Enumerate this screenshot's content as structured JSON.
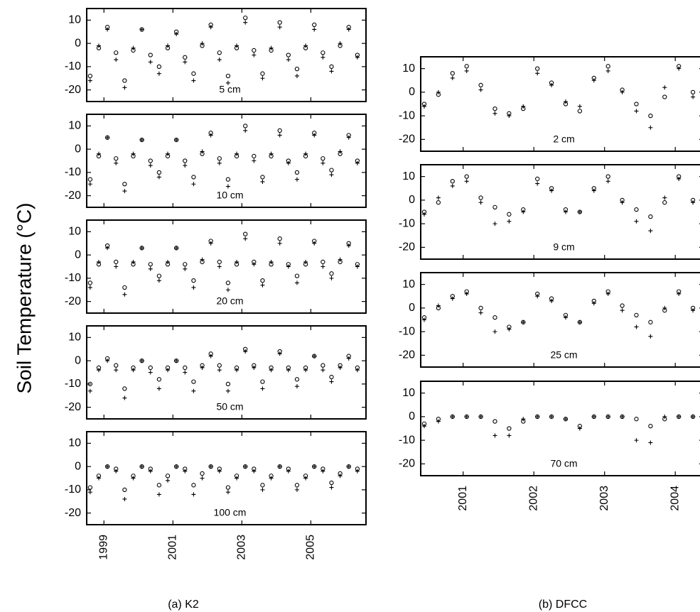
{
  "figure": {
    "ylabel": "Soil Temperature (°C)",
    "captions": [
      "(a) K2",
      "(b) DFCC"
    ]
  },
  "chart_data": [
    {
      "type": "scatter",
      "annotation": "5 cm",
      "xlim": [
        1998.5,
        2006.6
      ],
      "xticks": [
        1999,
        2001,
        2003,
        2005
      ],
      "ylim": [
        -25,
        15
      ],
      "yticks": [
        10,
        0,
        -10,
        -20
      ],
      "x": [
        1998.6,
        1998.85,
        1999.1,
        1999.35,
        1999.6,
        1999.85,
        2000.1,
        2000.35,
        2000.6,
        2000.85,
        2001.1,
        2001.35,
        2001.6,
        2001.85,
        2002.1,
        2002.35,
        2002.6,
        2002.85,
        2003.1,
        2003.35,
        2003.6,
        2003.85,
        2004.1,
        2004.35,
        2004.6,
        2004.85,
        2005.1,
        2005.35,
        2005.6,
        2005.85,
        2006.1,
        2006.35
      ],
      "series": [
        {
          "marker": "o",
          "color": "#000000",
          "values": [
            -14,
            -2,
            7,
            -4,
            -16,
            -3,
            6,
            -5,
            -10,
            -2,
            5,
            -6,
            -13,
            -1,
            8,
            -4,
            -14,
            -2,
            11,
            -3,
            -13,
            -3,
            9,
            -5,
            -11,
            -2,
            8,
            -4,
            -10,
            -1,
            7,
            -5
          ]
        },
        {
          "marker": "+",
          "color": "#000000",
          "values": [
            -16,
            -1,
            6,
            -7,
            -19,
            -2,
            6,
            -8,
            -13,
            -1,
            4,
            -8,
            -16,
            0,
            7,
            -7,
            -17,
            -1,
            9,
            -5,
            -15,
            -2,
            7,
            -7,
            -14,
            -1,
            6,
            -6,
            -12,
            0,
            6,
            -6
          ]
        }
      ]
    },
    {
      "type": "scatter",
      "annotation": "10 cm",
      "xlim": [
        1998.5,
        2006.6
      ],
      "xticks": [
        1999,
        2001,
        2003,
        2005
      ],
      "ylim": [
        -25,
        15
      ],
      "yticks": [
        10,
        0,
        -10,
        -20
      ],
      "x": [
        1998.6,
        1998.85,
        1999.1,
        1999.35,
        1999.6,
        1999.85,
        2000.1,
        2000.35,
        2000.6,
        2000.85,
        2001.1,
        2001.35,
        2001.6,
        2001.85,
        2002.1,
        2002.35,
        2002.6,
        2002.85,
        2003.1,
        2003.35,
        2003.6,
        2003.85,
        2004.1,
        2004.35,
        2004.6,
        2004.85,
        2005.1,
        2005.35,
        2005.6,
        2005.85,
        2006.1,
        2006.35
      ],
      "series": [
        {
          "marker": "o",
          "color": "#000000",
          "values": [
            -13,
            -3,
            5,
            -4,
            -15,
            -3,
            4,
            -5,
            -10,
            -3,
            4,
            -5,
            -12,
            -2,
            7,
            -4,
            -13,
            -3,
            10,
            -3,
            -12,
            -3,
            8,
            -5,
            -10,
            -3,
            7,
            -4,
            -9,
            -2,
            6,
            -5
          ]
        },
        {
          "marker": "+",
          "color": "#000000",
          "values": [
            -15,
            -2,
            5,
            -6,
            -18,
            -2,
            4,
            -7,
            -12,
            -2,
            4,
            -7,
            -15,
            -1,
            6,
            -6,
            -16,
            -2,
            8,
            -5,
            -14,
            -2,
            6,
            -6,
            -13,
            -2,
            6,
            -6,
            -11,
            -1,
            5,
            -6
          ]
        }
      ]
    },
    {
      "type": "scatter",
      "annotation": "20 cm",
      "xlim": [
        1998.5,
        2006.6
      ],
      "xticks": [
        1999,
        2001,
        2003,
        2005
      ],
      "ylim": [
        -25,
        15
      ],
      "yticks": [
        10,
        0,
        -10,
        -20
      ],
      "x": [
        1998.6,
        1998.85,
        1999.1,
        1999.35,
        1999.6,
        1999.85,
        2000.1,
        2000.35,
        2000.6,
        2000.85,
        2001.1,
        2001.35,
        2001.6,
        2001.85,
        2002.1,
        2002.35,
        2002.6,
        2002.85,
        2003.1,
        2003.35,
        2003.6,
        2003.85,
        2004.1,
        2004.35,
        2004.6,
        2004.85,
        2005.1,
        2005.35,
        2005.6,
        2005.85,
        2006.1,
        2006.35
      ],
      "series": [
        {
          "marker": "o",
          "color": "#000000",
          "values": [
            -12,
            -4,
            4,
            -3,
            -14,
            -4,
            3,
            -4,
            -9,
            -4,
            3,
            -4,
            -11,
            -3,
            6,
            -3,
            -12,
            -4,
            9,
            -3,
            -11,
            -4,
            7,
            -4,
            -9,
            -4,
            6,
            -3,
            -8,
            -3,
            5,
            -4
          ]
        },
        {
          "marker": "+",
          "color": "#000000",
          "values": [
            -14,
            -3,
            3,
            -5,
            -17,
            -3,
            3,
            -6,
            -11,
            -3,
            3,
            -6,
            -14,
            -2,
            5,
            -5,
            -15,
            -3,
            7,
            -4,
            -13,
            -3,
            5,
            -5,
            -12,
            -3,
            5,
            -5,
            -10,
            -2,
            4,
            -5
          ]
        }
      ]
    },
    {
      "type": "scatter",
      "annotation": "50 cm",
      "xlim": [
        1998.5,
        2006.6
      ],
      "xticks": [
        1999,
        2001,
        2003,
        2005
      ],
      "ylim": [
        -25,
        15
      ],
      "yticks": [
        10,
        0,
        -10,
        -20
      ],
      "x": [
        1998.6,
        1998.85,
        1999.1,
        1999.35,
        1999.6,
        1999.85,
        2000.1,
        2000.35,
        2000.6,
        2000.85,
        2001.1,
        2001.35,
        2001.6,
        2001.85,
        2002.1,
        2002.35,
        2002.6,
        2002.85,
        2003.1,
        2003.35,
        2003.6,
        2003.85,
        2004.1,
        2004.35,
        2004.6,
        2004.85,
        2005.1,
        2005.35,
        2005.6,
        2005.85,
        2006.1,
        2006.35
      ],
      "series": [
        {
          "marker": "o",
          "color": "#000000",
          "values": [
            -10,
            -3,
            1,
            -2,
            -12,
            -3,
            0,
            -3,
            -8,
            -3,
            0,
            -3,
            -9,
            -2,
            3,
            -2,
            -10,
            -3,
            5,
            -2,
            -9,
            -3,
            4,
            -3,
            -8,
            -3,
            2,
            -2,
            -7,
            -2,
            2,
            -3
          ]
        },
        {
          "marker": "+",
          "color": "#000000",
          "values": [
            -13,
            -4,
            0,
            -4,
            -16,
            -4,
            0,
            -5,
            -12,
            -4,
            0,
            -5,
            -13,
            -3,
            2,
            -4,
            -13,
            -4,
            4,
            -3,
            -12,
            -4,
            3,
            -4,
            -11,
            -4,
            2,
            -4,
            -9,
            -3,
            1,
            -4
          ]
        }
      ]
    },
    {
      "type": "scatter",
      "annotation": "100 cm",
      "xlim": [
        1998.5,
        2006.6
      ],
      "xticks": [
        1999,
        2001,
        2003,
        2005
      ],
      "ylim": [
        -25,
        15
      ],
      "yticks": [
        10,
        0,
        -10,
        -20
      ],
      "x": [
        1998.6,
        1998.85,
        1999.1,
        1999.35,
        1999.6,
        1999.85,
        2000.1,
        2000.35,
        2000.6,
        2000.85,
        2001.1,
        2001.35,
        2001.6,
        2001.85,
        2002.1,
        2002.35,
        2002.6,
        2002.85,
        2003.1,
        2003.35,
        2003.6,
        2003.85,
        2004.1,
        2004.35,
        2004.6,
        2004.85,
        2005.1,
        2005.35,
        2005.6,
        2005.85,
        2006.1,
        2006.35
      ],
      "series": [
        {
          "marker": "o",
          "color": "#000000",
          "values": [
            -9,
            -4,
            0,
            -1,
            -10,
            -4,
            0,
            -1,
            -8,
            -4,
            0,
            -1,
            -8,
            -3,
            0,
            -1,
            -9,
            -4,
            0,
            -1,
            -8,
            -4,
            0,
            -1,
            -8,
            -4,
            0,
            -1,
            -7,
            -3,
            0,
            -1
          ]
        },
        {
          "marker": "+",
          "color": "#000000",
          "values": [
            -11,
            -5,
            0,
            -2,
            -14,
            -5,
            0,
            -2,
            -12,
            -6,
            0,
            -2,
            -12,
            -5,
            0,
            -2,
            -11,
            -5,
            0,
            -2,
            -10,
            -5,
            0,
            -2,
            -10,
            -5,
            0,
            -2,
            -9,
            -4,
            0,
            -2
          ]
        }
      ]
    },
    {
      "type": "scatter",
      "annotation": "2 cm",
      "xlim": [
        2000.4,
        2004.4
      ],
      "xticks": [
        2001,
        2002,
        2003,
        2004
      ],
      "ylim": [
        -25,
        15
      ],
      "yticks": [
        10,
        0,
        -10,
        -20
      ],
      "x": [
        2000.45,
        2000.65,
        2000.85,
        2001.05,
        2001.25,
        2001.45,
        2001.65,
        2001.85,
        2002.05,
        2002.25,
        2002.45,
        2002.65,
        2002.85,
        2003.05,
        2003.25,
        2003.45,
        2003.65,
        2003.85,
        2004.05,
        2004.25
      ],
      "series": [
        {
          "marker": "o",
          "color": "#000000",
          "values": [
            -5,
            -1,
            8,
            11,
            3,
            -7,
            -9,
            -7,
            10,
            4,
            -5,
            -8,
            6,
            11,
            1,
            -5,
            -10,
            -2,
            11,
            0
          ]
        },
        {
          "marker": "+",
          "color": "#000000",
          "values": [
            -6,
            0,
            6,
            9,
            1,
            -9,
            -10,
            -6,
            8,
            3,
            -4,
            -6,
            5,
            9,
            0,
            -8,
            -15,
            2,
            10,
            -2
          ]
        }
      ]
    },
    {
      "type": "scatter",
      "annotation": "9 cm",
      "xlim": [
        2000.4,
        2004.4
      ],
      "xticks": [
        2001,
        2002,
        2003,
        2004
      ],
      "ylim": [
        -25,
        15
      ],
      "yticks": [
        10,
        0,
        -10,
        -20
      ],
      "x": [
        2000.45,
        2000.65,
        2000.85,
        2001.05,
        2001.25,
        2001.45,
        2001.65,
        2001.85,
        2002.05,
        2002.25,
        2002.45,
        2002.65,
        2002.85,
        2003.05,
        2003.25,
        2003.45,
        2003.65,
        2003.85,
        2004.05,
        2004.25
      ],
      "series": [
        {
          "marker": "o",
          "color": "#000000",
          "values": [
            -5,
            -1,
            8,
            10,
            1,
            -3,
            -6,
            -4,
            9,
            5,
            -4,
            -5,
            5,
            10,
            0,
            -4,
            -7,
            -1,
            10,
            0
          ]
        },
        {
          "marker": "+",
          "color": "#000000",
          "values": [
            -6,
            1,
            6,
            8,
            -1,
            -10,
            -9,
            -5,
            7,
            4,
            -5,
            -5,
            4,
            8,
            -1,
            -9,
            -13,
            1,
            9,
            -1
          ]
        }
      ]
    },
    {
      "type": "scatter",
      "annotation": "25 cm",
      "xlim": [
        2000.4,
        2004.4
      ],
      "xticks": [
        2001,
        2002,
        2003,
        2004
      ],
      "ylim": [
        -25,
        15
      ],
      "yticks": [
        10,
        0,
        -10,
        -20
      ],
      "x": [
        2000.45,
        2000.65,
        2000.85,
        2001.05,
        2001.25,
        2001.45,
        2001.65,
        2001.85,
        2002.05,
        2002.25,
        2002.45,
        2002.65,
        2002.85,
        2003.05,
        2003.25,
        2003.45,
        2003.65,
        2003.85,
        2004.05,
        2004.25
      ],
      "series": [
        {
          "marker": "o",
          "color": "#000000",
          "values": [
            -4,
            0,
            5,
            7,
            0,
            -4,
            -8,
            -6,
            6,
            4,
            -3,
            -6,
            3,
            7,
            1,
            -3,
            -6,
            -1,
            7,
            0
          ]
        },
        {
          "marker": "+",
          "color": "#000000",
          "values": [
            -5,
            1,
            4,
            6,
            -2,
            -10,
            -9,
            -6,
            5,
            3,
            -4,
            -6,
            2,
            6,
            -1,
            -8,
            -12,
            0,
            6,
            -1
          ]
        }
      ]
    },
    {
      "type": "scatter",
      "annotation": "70 cm",
      "xlim": [
        2000.4,
        2004.4
      ],
      "xticks": [
        2001,
        2002,
        2003,
        2004
      ],
      "ylim": [
        -25,
        15
      ],
      "yticks": [
        10,
        0,
        -10,
        -20
      ],
      "x": [
        2000.45,
        2000.65,
        2000.85,
        2001.05,
        2001.25,
        2001.45,
        2001.65,
        2001.85,
        2002.05,
        2002.25,
        2002.45,
        2002.65,
        2002.85,
        2003.05,
        2003.25,
        2003.45,
        2003.65,
        2003.85,
        2004.05,
        2004.25
      ],
      "series": [
        {
          "marker": "o",
          "color": "#000000",
          "values": [
            -3,
            -1,
            0,
            0,
            0,
            -2,
            -5,
            -2,
            0,
            0,
            -1,
            -4,
            0,
            0,
            0,
            -1,
            -4,
            -1,
            0,
            0
          ]
        },
        {
          "marker": "+",
          "color": "#000000",
          "values": [
            -4,
            -2,
            0,
            0,
            0,
            -8,
            -8,
            -1,
            0,
            0,
            -1,
            -5,
            0,
            0,
            0,
            -10,
            -11,
            0,
            0,
            0
          ]
        }
      ]
    }
  ]
}
